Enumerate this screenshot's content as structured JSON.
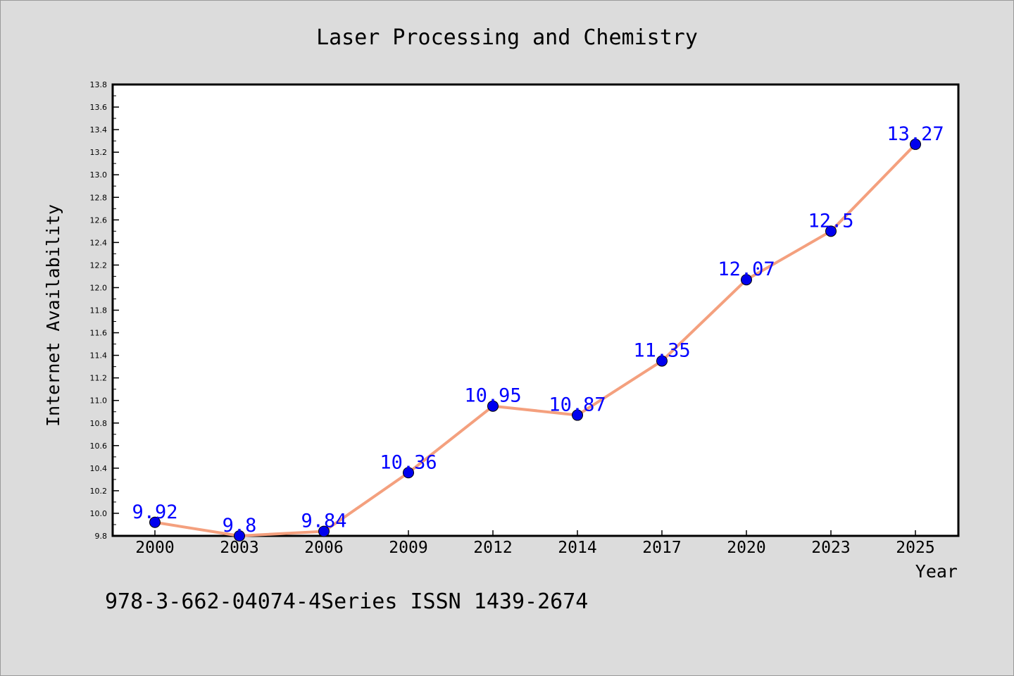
{
  "chart_data": {
    "type": "line",
    "title": "Laser Processing and Chemistry",
    "xlabel": "Year",
    "ylabel": "Internet Availability",
    "categories": [
      "2000",
      "2003",
      "2006",
      "2009",
      "2012",
      "2014",
      "2017",
      "2020",
      "2023",
      "2025"
    ],
    "series": [
      {
        "values": [
          9.92,
          9.8,
          9.84,
          10.36,
          10.95,
          10.87,
          11.35,
          12.07,
          12.5,
          13.27
        ],
        "data_labels": [
          "9.92",
          "9.8",
          "9.84",
          "10.36",
          "10.95",
          "10.87",
          "11.35",
          "12.07",
          "12.5",
          "13.27"
        ],
        "line_color": "#f4a07e",
        "marker_color": "#0000ee",
        "label_color": "#0000ff"
      }
    ],
    "ylim": [
      9.8,
      13.8
    ],
    "y_ticks": [
      "9.8",
      "10.0",
      "10.2",
      "10.4",
      "10.6",
      "10.8",
      "11.0",
      "11.2",
      "11.4",
      "11.6",
      "11.8",
      "12.0",
      "12.2",
      "12.4",
      "12.6",
      "12.8",
      "13.0",
      "13.2",
      "13.4",
      "13.6",
      "13.8"
    ],
    "grid": false,
    "legend": "none",
    "footer_text": "978-3-662-04074-4Series ISSN 1439-2674",
    "background_color": "#dcdcdc",
    "plot_background_color": "#ffffff"
  }
}
